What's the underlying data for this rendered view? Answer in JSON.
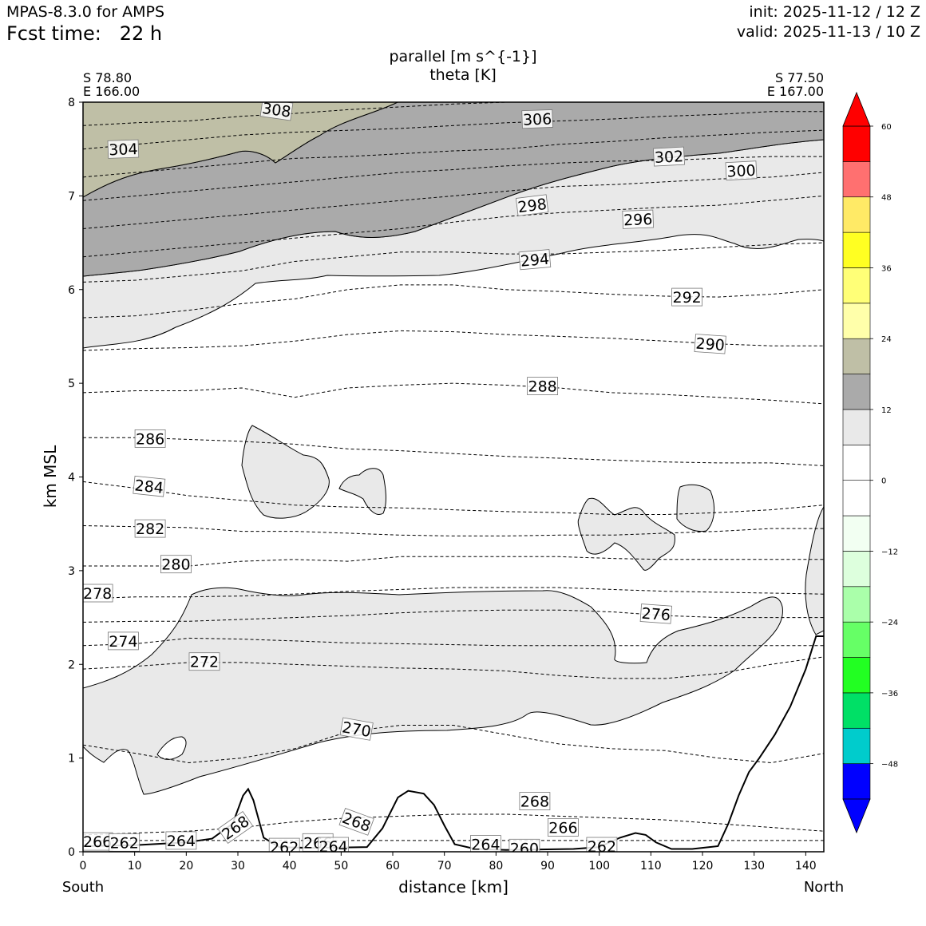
{
  "header": {
    "model": "MPAS-8.3.0 for AMPS",
    "fcst_label": "Fcst time:",
    "fcst_value": "22 h",
    "init": "init: 2025-11-12 / 12 Z",
    "valid": "valid: 2025-11-13 / 10 Z"
  },
  "chart_data": {
    "type": "cross-section contour",
    "title": "parallel [m s^{-1}]",
    "subtitle": "theta [K]",
    "xlabel": "distance [km]",
    "ylabel": "km MSL",
    "xlim": [
      0,
      143.5
    ],
    "ylim": [
      0,
      8
    ],
    "x_ticks": [
      0,
      10,
      20,
      30,
      40,
      50,
      60,
      70,
      80,
      90,
      100,
      110,
      120,
      130,
      140
    ],
    "y_ticks": [
      0,
      1,
      2,
      3,
      4,
      5,
      6,
      7,
      8
    ],
    "left_point": {
      "lat": "S 78.80",
      "lon": "E 166.00"
    },
    "right_point": {
      "lat": "S 77.50",
      "lon": "E 167.00"
    },
    "left_end": "South",
    "right_end": "North",
    "colorbar": {
      "levels": [
        -54,
        -48,
        -42,
        -36,
        -30,
        -24,
        -18,
        -12,
        -6,
        0,
        6,
        12,
        18,
        24,
        30,
        36,
        42,
        48,
        54,
        60
      ],
      "tick_labels": [
        "60",
        "48",
        "36",
        "24",
        "12",
        "0",
        "−12",
        "−24",
        "−36",
        "−48"
      ],
      "tick_values": [
        60,
        48,
        36,
        24,
        12,
        0,
        -12,
        -24,
        -36,
        -48
      ],
      "colors": [
        "#0000ff",
        "#00cccc",
        "#00e066",
        "#22ff22",
        "#66ff66",
        "#aaffaa",
        "#ddffdd",
        "#f2fff2",
        "#ffffff",
        "#ffffff",
        "#e9e9e9",
        "#aaaaaa",
        "#bfbfa6",
        "#ffffaa",
        "#ffff77",
        "#ffff22",
        "#ffea66",
        "#ff7070",
        "#ff0000"
      ],
      "under_color": "#0000ff",
      "over_color": "#ff0000"
    },
    "shaded_bands": [
      {
        "range": "6-12",
        "color": "#e9e9e9"
      },
      {
        "range": "12-18",
        "color": "#aaaaaa"
      },
      {
        "range": "18-24",
        "color": "#bfbfa6"
      }
    ],
    "theta_contours": [
      {
        "value": 262,
        "heights": [
          0.12,
          0.12,
          0.12,
          0.12,
          0.12,
          0.12
        ]
      },
      {
        "value": 266,
        "heights": [
          0.18,
          0.2,
          0.22,
          0.26,
          0.32,
          0.36,
          0.38,
          0.4,
          0.4,
          0.38,
          0.36,
          0.34,
          0.3,
          0.26,
          0.22
        ]
      },
      {
        "value": 270,
        "heights": [
          1.14,
          1.05,
          0.95,
          1.0,
          1.1,
          1.28,
          1.35,
          1.35,
          1.25,
          1.15,
          1.1,
          1.08,
          1.0,
          0.95,
          1.05
        ]
      },
      {
        "value": 272,
        "heights": [
          1.95,
          1.98,
          2.02,
          2.02,
          2.0,
          1.98,
          1.96,
          1.95,
          1.93,
          1.88,
          1.85,
          1.85,
          1.9,
          2.0,
          2.08
        ]
      },
      {
        "value": 274,
        "heights": [
          2.2,
          2.22,
          2.28,
          2.27,
          2.25,
          2.23,
          2.22,
          2.21,
          2.2,
          2.2,
          2.2,
          2.2,
          2.2,
          2.2,
          2.2
        ]
      },
      {
        "value": 276,
        "heights": [
          2.45,
          2.46,
          2.46,
          2.48,
          2.5,
          2.52,
          2.55,
          2.57,
          2.58,
          2.58,
          2.56,
          2.52,
          2.5,
          2.5,
          2.5
        ]
      },
      {
        "value": 278,
        "heights": [
          2.7,
          2.72,
          2.72,
          2.73,
          2.75,
          2.78,
          2.8,
          2.82,
          2.82,
          2.82,
          2.8,
          2.78,
          2.77,
          2.76,
          2.75
        ]
      },
      {
        "value": 280,
        "heights": [
          3.05,
          3.05,
          3.05,
          3.1,
          3.12,
          3.1,
          3.15,
          3.15,
          3.15,
          3.15,
          3.13,
          3.12,
          3.12,
          3.12,
          3.12
        ]
      },
      {
        "value": 282,
        "heights": [
          3.48,
          3.47,
          3.46,
          3.42,
          3.42,
          3.4,
          3.38,
          3.37,
          3.37,
          3.38,
          3.38,
          3.4,
          3.42,
          3.45,
          3.45
        ]
      },
      {
        "value": 284,
        "heights": [
          3.95,
          3.88,
          3.8,
          3.75,
          3.7,
          3.68,
          3.67,
          3.65,
          3.63,
          3.62,
          3.6,
          3.6,
          3.62,
          3.65,
          3.7
        ]
      },
      {
        "value": 286,
        "heights": [
          4.42,
          4.42,
          4.4,
          4.38,
          4.35,
          4.3,
          4.28,
          4.25,
          4.22,
          4.2,
          4.18,
          4.16,
          4.15,
          4.15,
          4.12
        ]
      },
      {
        "value": 288,
        "heights": [
          4.9,
          4.92,
          4.92,
          4.95,
          4.85,
          4.95,
          4.98,
          5.0,
          4.98,
          4.95,
          4.9,
          4.88,
          4.85,
          4.82,
          4.78
        ]
      },
      {
        "value": 290,
        "heights": [
          5.35,
          5.37,
          5.38,
          5.4,
          5.45,
          5.52,
          5.56,
          5.55,
          5.52,
          5.5,
          5.48,
          5.45,
          5.42,
          5.4,
          5.4
        ]
      },
      {
        "value": 292,
        "heights": [
          5.7,
          5.72,
          5.78,
          5.85,
          5.9,
          6.0,
          6.05,
          6.05,
          6.0,
          5.98,
          5.95,
          5.93,
          5.92,
          5.95,
          6.0
        ]
      },
      {
        "value": 294,
        "heights": [
          6.08,
          6.1,
          6.15,
          6.2,
          6.3,
          6.35,
          6.4,
          6.4,
          6.38,
          6.38,
          6.4,
          6.42,
          6.45,
          6.48,
          6.5
        ]
      },
      {
        "value": 296,
        "heights": [
          6.35,
          6.4,
          6.45,
          6.5,
          6.55,
          6.6,
          6.65,
          6.72,
          6.78,
          6.82,
          6.85,
          6.88,
          6.9,
          6.95,
          7.0
        ]
      },
      {
        "value": 298,
        "heights": [
          6.65,
          6.7,
          6.75,
          6.8,
          6.85,
          6.9,
          6.95,
          7.0,
          7.05,
          7.1,
          7.12,
          7.15,
          7.18,
          7.2,
          7.25
        ]
      },
      {
        "value": 300,
        "heights": [
          6.95,
          7.0,
          7.05,
          7.1,
          7.15,
          7.2,
          7.25,
          7.28,
          7.32,
          7.35,
          7.37,
          7.38,
          7.4,
          7.42,
          7.42
        ]
      },
      {
        "value": 302,
        "heights": [
          7.2,
          7.25,
          7.3,
          7.35,
          7.4,
          7.42,
          7.45,
          7.48,
          7.5,
          7.55,
          7.58,
          7.62,
          7.65,
          7.68,
          7.7
        ]
      },
      {
        "value": 304,
        "heights": [
          7.5,
          7.55,
          7.6,
          7.65,
          7.68,
          7.7,
          7.72,
          7.75,
          7.78,
          7.8,
          7.82,
          7.85,
          7.87,
          7.9,
          7.9
        ]
      },
      {
        "value": 306,
        "heights": [
          7.75,
          7.78,
          7.8,
          7.85,
          7.88,
          7.92,
          7.95,
          7.98,
          8.0,
          8.0,
          8.0,
          8.0,
          8.0,
          8.0,
          8.0
        ]
      }
    ],
    "contour_labels": [
      {
        "text": "308",
        "x": 37.5,
        "y": 7.92,
        "angle": 8
      },
      {
        "text": "306",
        "x": 88,
        "y": 7.82,
        "angle": -2
      },
      {
        "text": "304",
        "x": 7.8,
        "y": 7.5,
        "angle": -2
      },
      {
        "text": "302",
        "x": 113.5,
        "y": 7.42,
        "angle": -3
      },
      {
        "text": "300",
        "x": 127.5,
        "y": 7.27,
        "angle": -3
      },
      {
        "text": "298",
        "x": 87,
        "y": 6.9,
        "angle": -7
      },
      {
        "text": "296",
        "x": 107.5,
        "y": 6.75,
        "angle": -2
      },
      {
        "text": "294",
        "x": 87.5,
        "y": 6.32,
        "angle": -5
      },
      {
        "text": "292",
        "x": 117,
        "y": 5.92,
        "angle": 0
      },
      {
        "text": "290",
        "x": 121.5,
        "y": 5.42,
        "angle": 4
      },
      {
        "text": "288",
        "x": 89,
        "y": 4.97,
        "angle": 0
      },
      {
        "text": "286",
        "x": 13,
        "y": 4.41,
        "angle": 0
      },
      {
        "text": "284",
        "x": 12.8,
        "y": 3.9,
        "angle": 6
      },
      {
        "text": "282",
        "x": 13,
        "y": 3.45,
        "angle": 0
      },
      {
        "text": "280",
        "x": 18,
        "y": 3.07,
        "angle": 0
      },
      {
        "text": "278",
        "x": 2.8,
        "y": 2.76,
        "angle": 0
      },
      {
        "text": "276",
        "x": 111,
        "y": 2.54,
        "angle": 4
      },
      {
        "text": "274",
        "x": 7.8,
        "y": 2.25,
        "angle": 0
      },
      {
        "text": "272",
        "x": 23.5,
        "y": 2.03,
        "angle": 0
      },
      {
        "text": "270",
        "x": 53,
        "y": 1.31,
        "angle": 10
      },
      {
        "text": "268",
        "x": 87.5,
        "y": 0.54,
        "angle": 0
      },
      {
        "text": "268",
        "x": 29.5,
        "y": 0.26,
        "angle": -35
      },
      {
        "text": "268",
        "x": 53,
        "y": 0.32,
        "angle": 20
      },
      {
        "text": "266",
        "x": 93,
        "y": 0.26,
        "angle": 0
      },
      {
        "text": "266",
        "x": 2.8,
        "y": 0.11,
        "angle": 0
      },
      {
        "text": "266",
        "x": 45.5,
        "y": 0.1,
        "angle": 0
      },
      {
        "text": "264",
        "x": 19,
        "y": 0.12,
        "angle": 0
      },
      {
        "text": "264",
        "x": 78,
        "y": 0.08,
        "angle": 0
      },
      {
        "text": "264",
        "x": 48.5,
        "y": 0.06,
        "angle": 0
      },
      {
        "text": "262",
        "x": 8,
        "y": 0.1,
        "angle": 0
      },
      {
        "text": "262",
        "x": 39,
        "y": 0.05,
        "angle": 0
      },
      {
        "text": "262",
        "x": 100.5,
        "y": 0.06,
        "angle": 0
      },
      {
        "text": "260",
        "x": 85.5,
        "y": 0.04,
        "angle": 0
      }
    ],
    "terrain": {
      "x": [
        0,
        10,
        20,
        25,
        29,
        31,
        32,
        33,
        35,
        38,
        45,
        55,
        58,
        61,
        63,
        66,
        68,
        70,
        72,
        76,
        82,
        95,
        100,
        104,
        107,
        109,
        111,
        114,
        118,
        123,
        125,
        127,
        129,
        131,
        134,
        137,
        140,
        142,
        143.5
      ],
      "y": [
        0.06,
        0.07,
        0.1,
        0.14,
        0.3,
        0.6,
        0.67,
        0.55,
        0.15,
        0.05,
        0.04,
        0.05,
        0.25,
        0.58,
        0.65,
        0.62,
        0.5,
        0.28,
        0.08,
        0.03,
        0.02,
        0.03,
        0.05,
        0.15,
        0.2,
        0.18,
        0.1,
        0.03,
        0.03,
        0.06,
        0.3,
        0.6,
        0.85,
        1.0,
        1.25,
        1.55,
        1.95,
        2.3,
        2.3
      ]
    }
  }
}
